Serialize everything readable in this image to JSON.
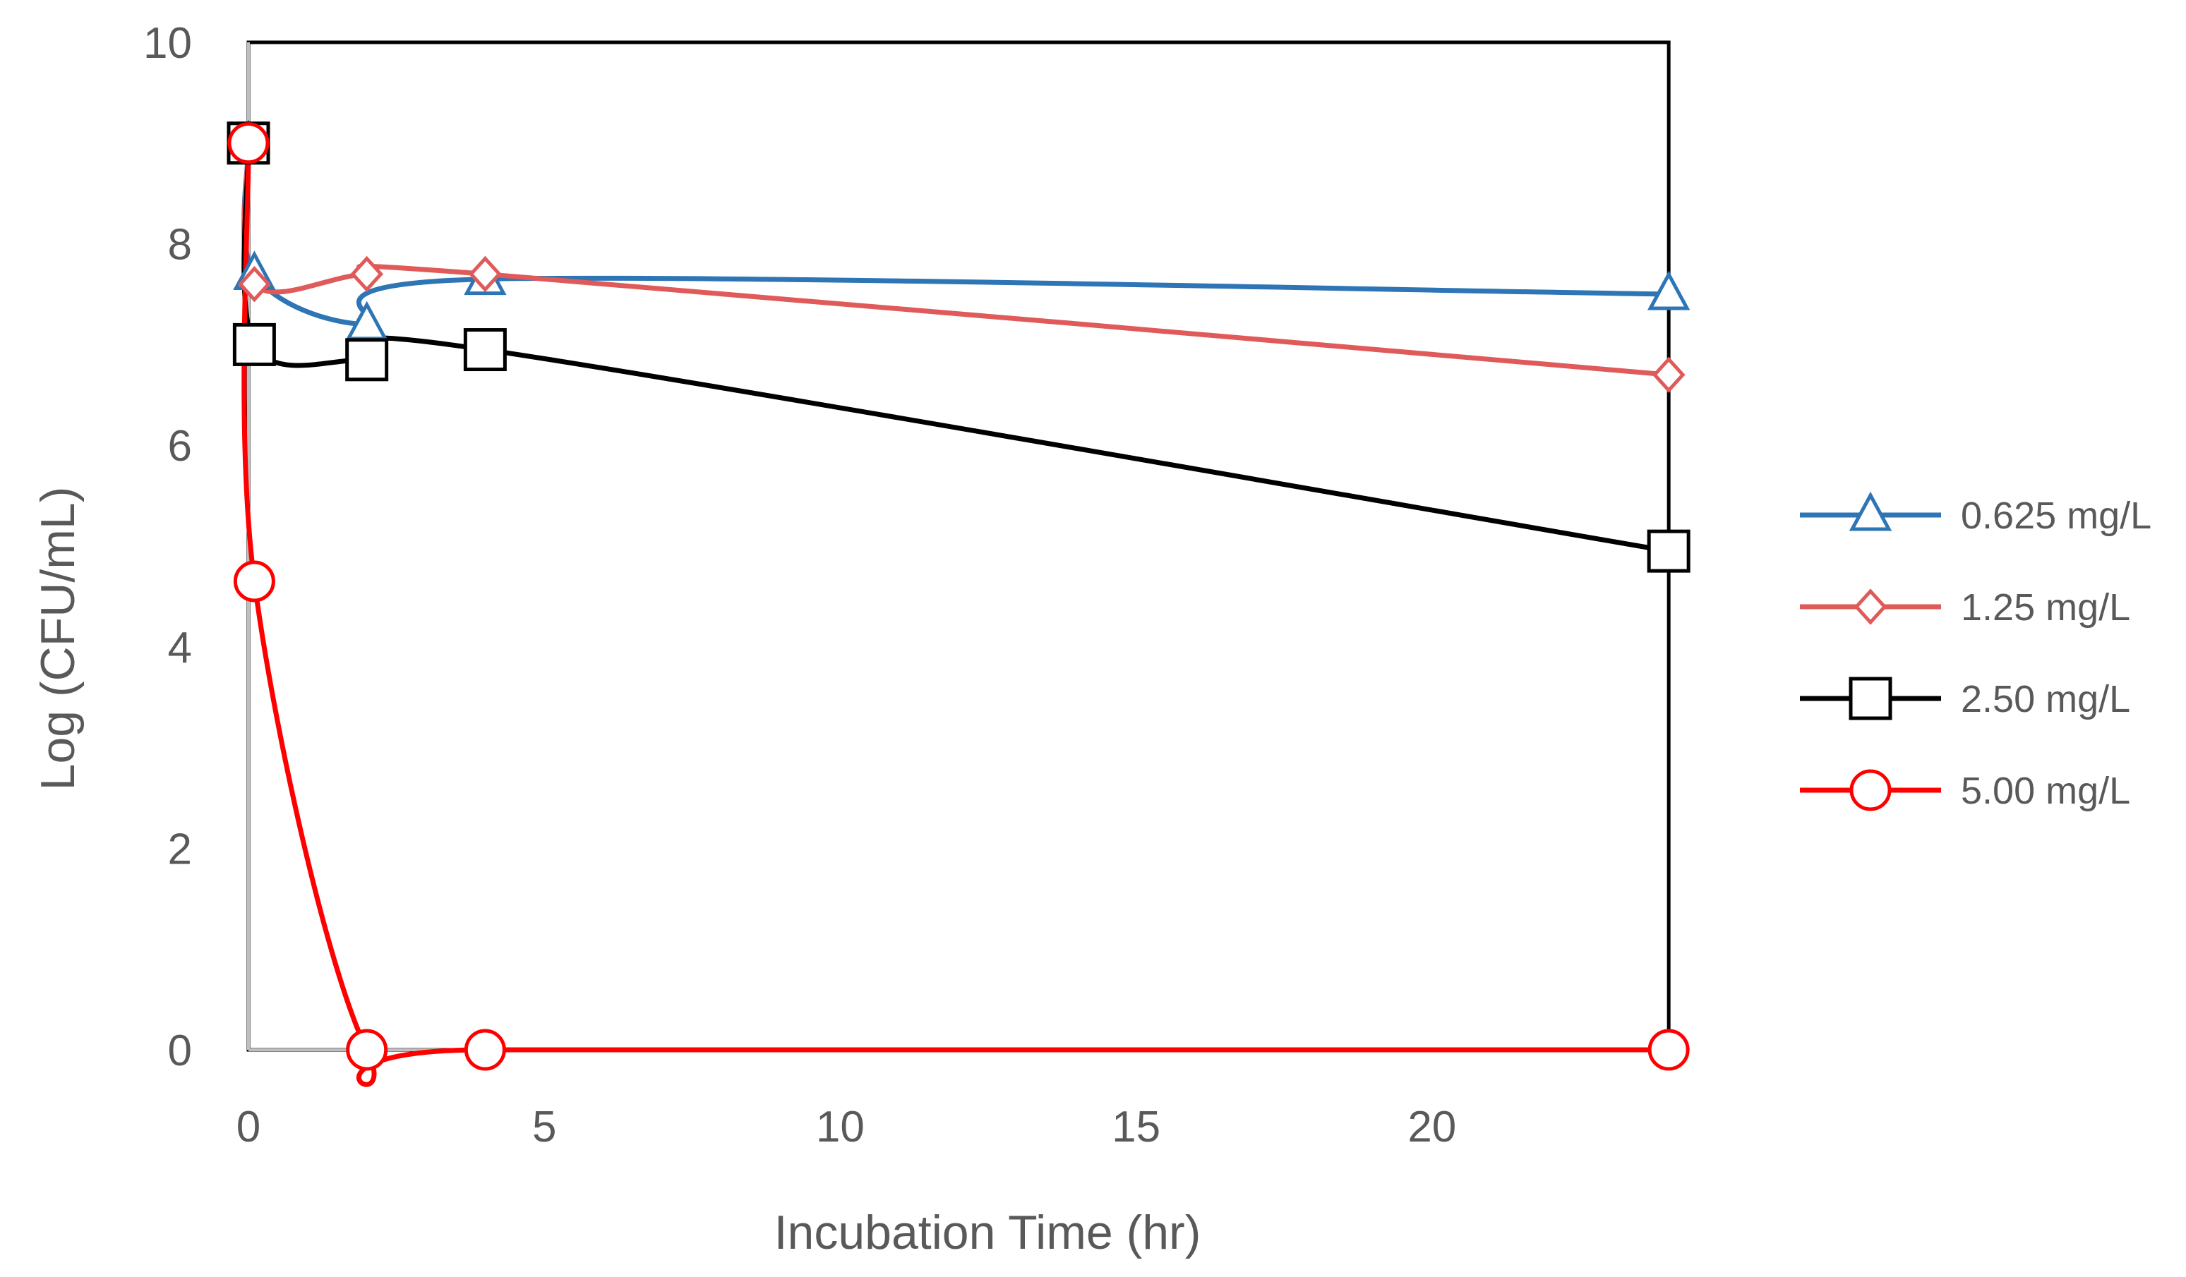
{
  "chart_data": {
    "type": "line",
    "title": "",
    "xlabel": "Incubation Time (hr)",
    "ylabel": "Log (CFU/mL)",
    "xlim": [
      0,
      25
    ],
    "ylim": [
      0,
      10
    ],
    "x_ticks": [
      0,
      5,
      10,
      15,
      20
    ],
    "y_ticks": [
      0,
      2,
      4,
      6,
      8,
      10
    ],
    "x_tick_labels": [
      "0",
      "5",
      "10",
      "15",
      "20"
    ],
    "y_tick_labels": [
      "0",
      "2",
      "4",
      "6",
      "8",
      "10"
    ],
    "grid": false,
    "legend_position": "right",
    "series": [
      {
        "name": "0.625 mg/L",
        "color": "#2E75B6",
        "marker": "triangle",
        "x": [
          0,
          0.1,
          2,
          4,
          24
        ],
        "y": [
          9.0,
          7.7,
          7.2,
          7.65,
          7.5
        ]
      },
      {
        "name": "1.25 mg/L",
        "color": "#E05A5A",
        "marker": "diamond",
        "x": [
          0,
          0.1,
          2,
          4,
          24
        ],
        "y": [
          9.0,
          7.6,
          7.7,
          7.7,
          6.7
        ]
      },
      {
        "name": "2.50 mg/L",
        "color": "#000000",
        "marker": "square",
        "x": [
          0,
          0.1,
          2,
          4,
          24
        ],
        "y": [
          9.0,
          7.0,
          6.85,
          6.95,
          4.95
        ]
      },
      {
        "name": "5.00 mg/L",
        "color": "#FF0000",
        "marker": "circle",
        "x": [
          0,
          0.1,
          2,
          4,
          24
        ],
        "y": [
          9.0,
          4.65,
          0,
          0,
          0
        ]
      }
    ]
  }
}
